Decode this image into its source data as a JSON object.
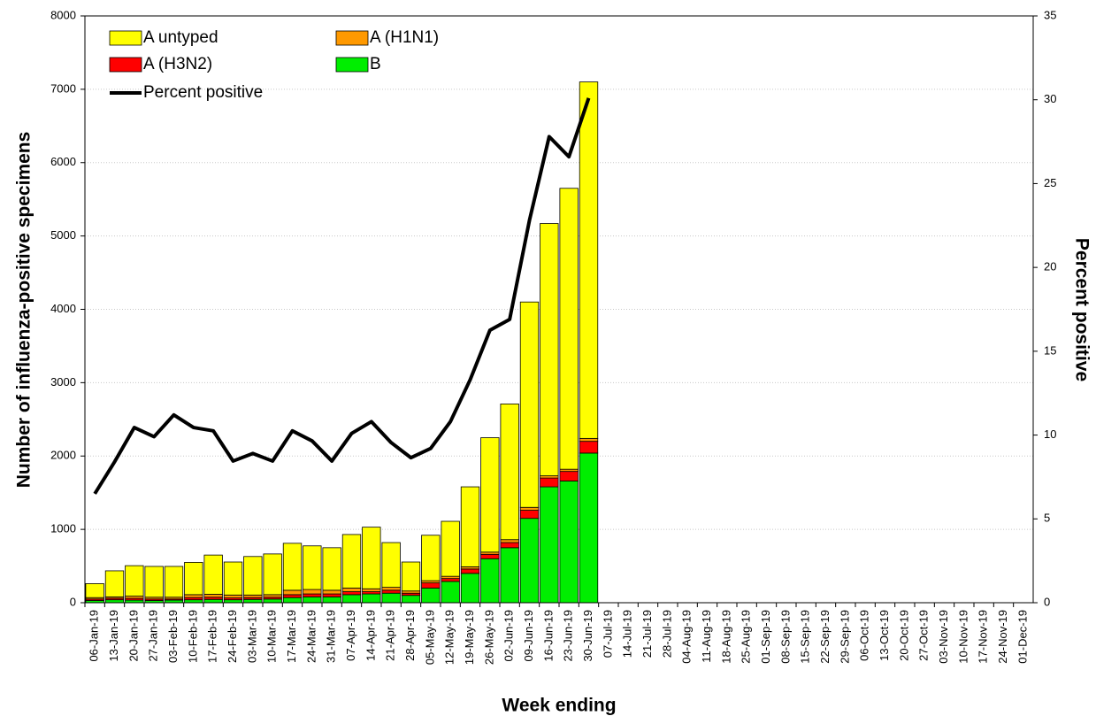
{
  "chart_data": {
    "type": "bar",
    "stacked": true,
    "x_label": "Week ending",
    "y_label": "Number of influenza-positive specimens",
    "y2_label": "Percent positive",
    "grid": true,
    "legend": "top-left",
    "categories": [
      "06-Jan-19",
      "13-Jan-19",
      "20-Jan-19",
      "27-Jan-19",
      "03-Feb-19",
      "10-Feb-19",
      "17-Feb-19",
      "24-Feb-19",
      "03-Mar-19",
      "10-Mar-19",
      "17-Mar-19",
      "24-Mar-19",
      "31-Mar-19",
      "07-Apr-19",
      "14-Apr-19",
      "21-Apr-19",
      "28-Apr-19",
      "05-May-19",
      "12-May-19",
      "19-May-19",
      "26-May-19",
      "02-Jun-19",
      "09-Jun-19",
      "16-Jun-19",
      "23-Jun-19",
      "30-Jun-19",
      "07-Jul-19",
      "14-Jul-19",
      "21-Jul-19",
      "28-Jul-19",
      "04-Aug-19",
      "11-Aug-19",
      "18-Aug-19",
      "25-Aug-19",
      "01-Sep-19",
      "08-Sep-19",
      "15-Sep-19",
      "22-Sep-19",
      "29-Sep-19",
      "06-Oct-19",
      "13-Oct-19",
      "20-Oct-19",
      "27-Oct-19",
      "03-Nov-19",
      "10-Nov-19",
      "17-Nov-19",
      "24-Nov-19",
      "01-Dec-19"
    ],
    "series": [
      {
        "name": "A untyped",
        "color": "#ffff00",
        "values": [
          190,
          355,
          415,
          420,
          420,
          440,
          535,
          450,
          525,
          555,
          640,
          595,
          580,
          730,
          840,
          610,
          395,
          620,
          750,
          1090,
          1560,
          1850,
          2800,
          3440,
          3830,
          4860,
          null,
          null,
          null,
          null,
          null,
          null,
          null,
          null,
          null,
          null,
          null,
          null,
          null,
          null,
          null,
          null,
          null,
          null,
          null,
          null,
          null,
          null
        ]
      },
      {
        "name": "A (H1N1)",
        "color": "#ff9900",
        "values": [
          20,
          20,
          30,
          25,
          25,
          40,
          40,
          40,
          35,
          35,
          60,
          60,
          50,
          50,
          40,
          40,
          30,
          30,
          30,
          30,
          30,
          40,
          40,
          30,
          30,
          40,
          null,
          null,
          null,
          null,
          null,
          null,
          null,
          null,
          null,
          null,
          null,
          null,
          null,
          null,
          null,
          null,
          null,
          null,
          null,
          null,
          null,
          null
        ]
      },
      {
        "name": "A (H3N2)",
        "color": "#ff0000",
        "values": [
          20,
          20,
          25,
          20,
          15,
          30,
          30,
          25,
          25,
          25,
          40,
          40,
          40,
          40,
          30,
          40,
          30,
          70,
          40,
          60,
          60,
          70,
          110,
          120,
          130,
          160,
          null,
          null,
          null,
          null,
          null,
          null,
          null,
          null,
          null,
          null,
          null,
          null,
          null,
          null,
          null,
          null,
          null,
          null,
          null,
          null,
          null,
          null
        ]
      },
      {
        "name": "B",
        "color": "#00ee00",
        "values": [
          30,
          40,
          35,
          30,
          35,
          40,
          45,
          40,
          45,
          50,
          70,
          80,
          80,
          110,
          120,
          130,
          100,
          200,
          290,
          400,
          600,
          750,
          1150,
          1580,
          1660,
          2040,
          null,
          null,
          null,
          null,
          null,
          null,
          null,
          null,
          null,
          null,
          null,
          null,
          null,
          null,
          null,
          null,
          null,
          null,
          null,
          null,
          null,
          null
        ]
      },
      {
        "name": "Percent positive",
        "color": "#000000",
        "type": "line",
        "axis": "y2",
        "values": [
          6.5,
          8.4,
          10.45,
          9.9,
          11.2,
          10.45,
          10.25,
          8.45,
          8.9,
          8.45,
          10.25,
          9.65,
          8.45,
          10.1,
          10.8,
          9.55,
          8.65,
          9.2,
          10.8,
          13.3,
          16.25,
          16.9,
          22.8,
          27.8,
          26.6,
          30.1,
          null,
          null,
          null,
          null,
          null,
          null,
          null,
          null,
          null,
          null,
          null,
          null,
          null,
          null,
          null,
          null,
          null,
          null,
          null,
          null,
          null,
          null
        ]
      }
    ],
    "ylim": [
      0,
      8000
    ],
    "yticks": [
      0,
      1000,
      2000,
      3000,
      4000,
      5000,
      6000,
      7000,
      8000
    ],
    "y2lim": [
      0,
      35
    ],
    "y2ticks": [
      0,
      5,
      10,
      15,
      20,
      25,
      30,
      35
    ]
  }
}
